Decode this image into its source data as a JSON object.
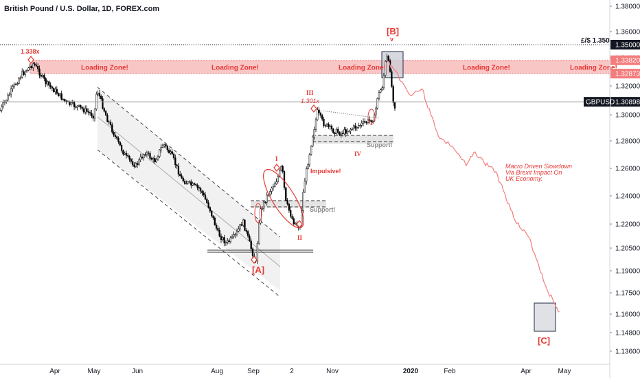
{
  "title": "British Pound / U.S. Dollar, 1D, FOREX.com",
  "symbol": "GBPUSD",
  "chart_data": {
    "type": "line",
    "title": "British Pound / U.S. Dollar, 1D, FOREX.com",
    "yaxis": {
      "ticks": [
        "1.38000",
        "1.36000",
        "1.34000",
        "1.32000",
        "1.30000",
        "1.28000",
        "1.26000",
        "1.24000",
        "1.22000",
        "1.20500",
        "1.19000",
        "1.17500",
        "1.16000",
        "1.14800",
        "1.13600"
      ],
      "highlight_labels": [
        {
          "text": "1.35000",
          "value": 1.35,
          "color": "#131722"
        },
        {
          "text": "1.33820",
          "value": 1.3382,
          "color": "#f47c7c"
        },
        {
          "text": "1.32873",
          "value": 1.32873,
          "color": "#f47c7c"
        },
        {
          "text": "1.30898",
          "value": 1.30898,
          "color": "#131722"
        }
      ]
    },
    "xaxis": {
      "ticks": [
        "Apr",
        "May",
        "Jun",
        "Aug",
        "Sep",
        "2",
        "Nov",
        "2020",
        "Feb",
        "Apr",
        "May"
      ],
      "bold_ticks": [
        "2020"
      ]
    },
    "levels": {
      "gbp_label": "£/$ 1.350",
      "gbp_value": 1.35,
      "current_price": 1.30898,
      "current_label": "GBPUSD",
      "loading_zone_top": 1.3382,
      "loading_zone_bottom": 1.32873
    },
    "annotations": {
      "loading_zone": "Loading Zone!",
      "wave_a": "[A]",
      "wave_b": "[B]",
      "wave_c": "[C]",
      "wave_b_mark": "v",
      "wave_i": "I",
      "wave_ii": "II",
      "wave_iii": "III",
      "wave_iv": "IV",
      "impulsive": "Impulsive!",
      "support": "Support!",
      "ext_1338": "1.338x",
      "ext_1301": "1.301x",
      "macro_line1": "Macro Driven Slowdown",
      "macro_line2": "Via Brexit Impact On",
      "macro_line3": "UK Economy."
    },
    "price_series": {
      "name": "",
      "x": [
        "2019-03-01",
        "2019-03-08",
        "2019-03-13",
        "2019-03-20",
        "2019-03-27",
        "2019-04-03",
        "2019-04-10",
        "2019-04-17",
        "2019-04-24",
        "2019-05-01",
        "2019-05-03",
        "2019-05-10",
        "2019-05-17",
        "2019-05-24",
        "2019-05-31",
        "2019-06-07",
        "2019-06-14",
        "2019-06-21",
        "2019-06-28",
        "2019-07-05",
        "2019-07-12",
        "2019-07-19",
        "2019-07-26",
        "2019-08-02",
        "2019-08-09",
        "2019-08-16",
        "2019-08-23",
        "2019-08-30",
        "2019-09-03",
        "2019-09-06",
        "2019-09-13",
        "2019-09-20",
        "2019-09-24",
        "2019-09-27",
        "2019-10-03",
        "2019-10-08",
        "2019-10-11",
        "2019-10-17",
        "2019-10-21",
        "2019-10-25",
        "2019-11-01",
        "2019-11-08",
        "2019-11-15",
        "2019-11-22",
        "2019-11-29",
        "2019-12-04",
        "2019-12-06",
        "2019-12-10",
        "2019-12-12",
        "2019-12-13",
        "2019-12-16",
        "2019-12-18",
        "2019-12-20"
      ],
      "y": [
        1.303,
        1.318,
        1.328,
        1.336,
        1.322,
        1.315,
        1.308,
        1.306,
        1.303,
        1.299,
        1.318,
        1.298,
        1.281,
        1.268,
        1.262,
        1.272,
        1.265,
        1.278,
        1.268,
        1.252,
        1.248,
        1.245,
        1.232,
        1.214,
        1.208,
        1.212,
        1.222,
        1.205,
        1.195,
        1.228,
        1.242,
        1.252,
        1.262,
        1.236,
        1.222,
        1.218,
        1.248,
        1.282,
        1.302,
        1.294,
        1.288,
        1.286,
        1.289,
        1.292,
        1.295,
        1.298,
        1.312,
        1.32,
        1.334,
        1.342,
        1.332,
        1.312,
        1.305
      ]
    },
    "projection_series": {
      "name": "",
      "x": [
        "2019-12-13",
        "2019-12-20",
        "2019-12-31",
        "2020-01-10",
        "2020-01-17",
        "2020-01-24",
        "2020-02-03",
        "2020-02-14",
        "2020-02-21",
        "2020-02-28",
        "2020-03-06",
        "2020-03-13",
        "2020-03-20",
        "2020-03-27",
        "2020-04-03",
        "2020-04-10",
        "2020-04-17",
        "2020-04-24",
        "2020-04-27"
      ],
      "y": [
        1.3382,
        1.331,
        1.314,
        1.318,
        1.3,
        1.282,
        1.276,
        1.262,
        1.272,
        1.264,
        1.26,
        1.248,
        1.23,
        1.218,
        1.212,
        1.196,
        1.178,
        1.166,
        1.162
      ]
    },
    "grid": false,
    "legend": "none"
  }
}
